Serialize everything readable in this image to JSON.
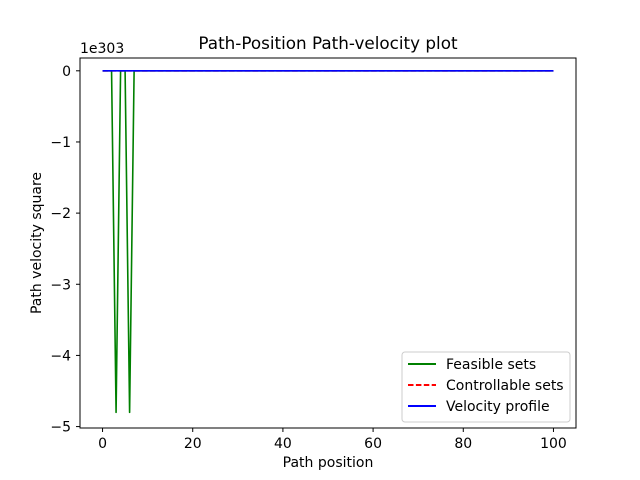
{
  "chart_data": {
    "type": "line",
    "title": "Path-Position Path-velocity plot",
    "xlabel": "Path position",
    "ylabel": "Path velocity square",
    "y_offset_text": "1e303",
    "xlim": [
      -5,
      105
    ],
    "ylim": [
      -5.02,
      0.18
    ],
    "x_ticks": [
      0,
      20,
      40,
      60,
      80,
      100
    ],
    "x_tick_labels": [
      "0",
      "20",
      "40",
      "60",
      "80",
      "100"
    ],
    "y_ticks": [
      0,
      -1,
      -2,
      -3,
      -4,
      -5
    ],
    "y_tick_labels": [
      "0",
      "−1",
      "−2",
      "−3",
      "−4",
      "−5"
    ],
    "grid": false,
    "legend_position": "lower right",
    "series": [
      {
        "name": "Feasible sets",
        "color": "#008000",
        "style": "solid",
        "points": [
          [
            0,
            0
          ],
          [
            1,
            0
          ],
          [
            2,
            0
          ],
          [
            3,
            -4.8
          ],
          [
            4,
            0
          ],
          [
            5,
            0
          ],
          [
            6,
            -4.8
          ],
          [
            7,
            0
          ],
          [
            8,
            0
          ],
          [
            20,
            0
          ],
          [
            40,
            0
          ],
          [
            60,
            0
          ],
          [
            80,
            0
          ],
          [
            100,
            0
          ]
        ]
      },
      {
        "name": "Controllable sets",
        "color": "#ff0000",
        "style": "dashed",
        "points": [
          [
            0,
            0
          ],
          [
            20,
            0
          ],
          [
            40,
            0
          ],
          [
            60,
            0
          ],
          [
            80,
            0
          ],
          [
            100,
            0
          ]
        ]
      },
      {
        "name": "Velocity profile",
        "color": "#0000ff",
        "style": "solid",
        "points": [
          [
            0,
            0
          ],
          [
            20,
            0
          ],
          [
            40,
            0
          ],
          [
            60,
            0
          ],
          [
            80,
            0
          ],
          [
            100,
            0
          ]
        ]
      }
    ]
  }
}
